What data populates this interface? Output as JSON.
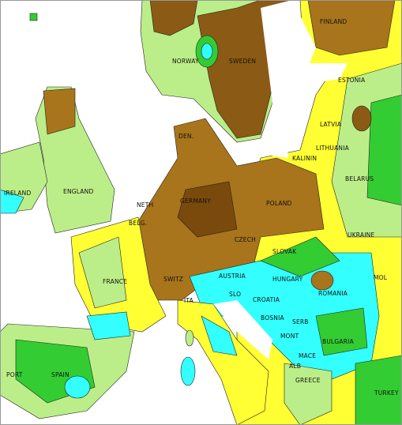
{
  "labels": {
    "finland": "FINLAND",
    "norway": "NORWAY",
    "sweden": "SWEDEN",
    "estonia": "ESTONIA",
    "latvia": "LATVIA",
    "lithuania": "LITHUANIA",
    "kalinin": "KALININ",
    "denmark": "DEN.",
    "ireland": "IRELAND",
    "england": "ENGLAND",
    "belarus": "BELARUS",
    "poland": "POLAND",
    "netherlands": "NETH",
    "belgium": "BELG.",
    "germany": "GERMANY",
    "czech": "CZECH",
    "slovakia": "SLOVAK",
    "ukraine": "UKRAINE",
    "france": "FRANCE",
    "switzerland": "SWITZ",
    "austria": "AUSTRIA",
    "hungary": "HUNGARY",
    "moldova": "MOL",
    "romania": "ROMANIA",
    "slovenia": "SLO",
    "croatia": "CROATIA",
    "bosnia": "BOSNIA",
    "serbia": "SERB",
    "montenegro": "MONT",
    "bulgaria": "BULGARIA",
    "macedonia": "MACE",
    "albania": "ALB",
    "greece": "GREECE",
    "turkey": "TURKEY",
    "portugal": "PORT",
    "spain": "SPAIN",
    "italy": "ITA"
  }
}
